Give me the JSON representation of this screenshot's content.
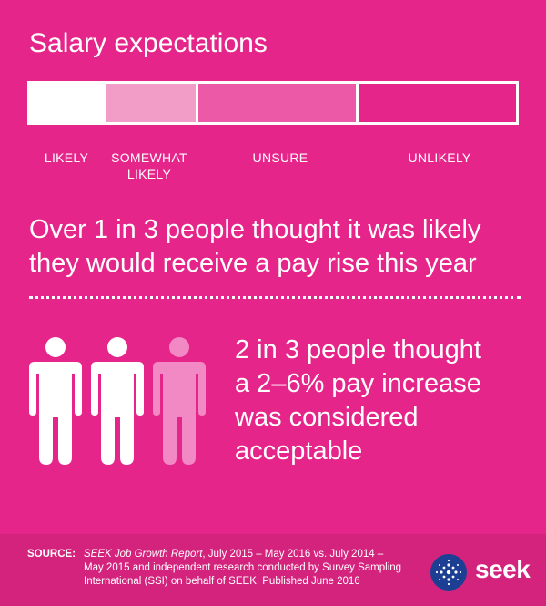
{
  "title": "Salary expectations",
  "scale": {
    "segments": [
      {
        "label": "LIKELY",
        "label_line2": "",
        "color": "#ffffff",
        "value": 0.15
      },
      {
        "label": "SOMEWHAT",
        "label_line2": "LIKELY",
        "color": "#f29cc8",
        "value": 0.19
      },
      {
        "label": "UNSURE",
        "label_line2": "",
        "color": "#ec5aa7",
        "value": 0.33
      },
      {
        "label": "UNLIKELY",
        "label_line2": "",
        "color": "#e5258a",
        "value": 0.33
      }
    ]
  },
  "headline": "Over 1 in 3 people thought it was likely they would receive a pay rise this year",
  "people": {
    "total": 3,
    "highlighted": 2,
    "highlight_color": "#ffffff",
    "other_color": "#f288c4",
    "icon": "person-icon"
  },
  "stat": {
    "line1": "2 in 3 people thought",
    "line2": "a 2–6% pay increase",
    "line3": "was considered",
    "line4": "acceptable"
  },
  "footer": {
    "source_label": "SOURCE:",
    "source_title": "SEEK Job Growth Report",
    "source_text_1": ", July 2015 – May 2016 vs. July 2014 –",
    "source_text_2": "May 2015 and independent research conducted by Survey Sampling",
    "source_text_3": "International (SSI) on behalf of SEEK. Published June 2016"
  },
  "logo": {
    "text": "seek",
    "icon": "seek-star-logo",
    "color": "#1c3f94"
  }
}
